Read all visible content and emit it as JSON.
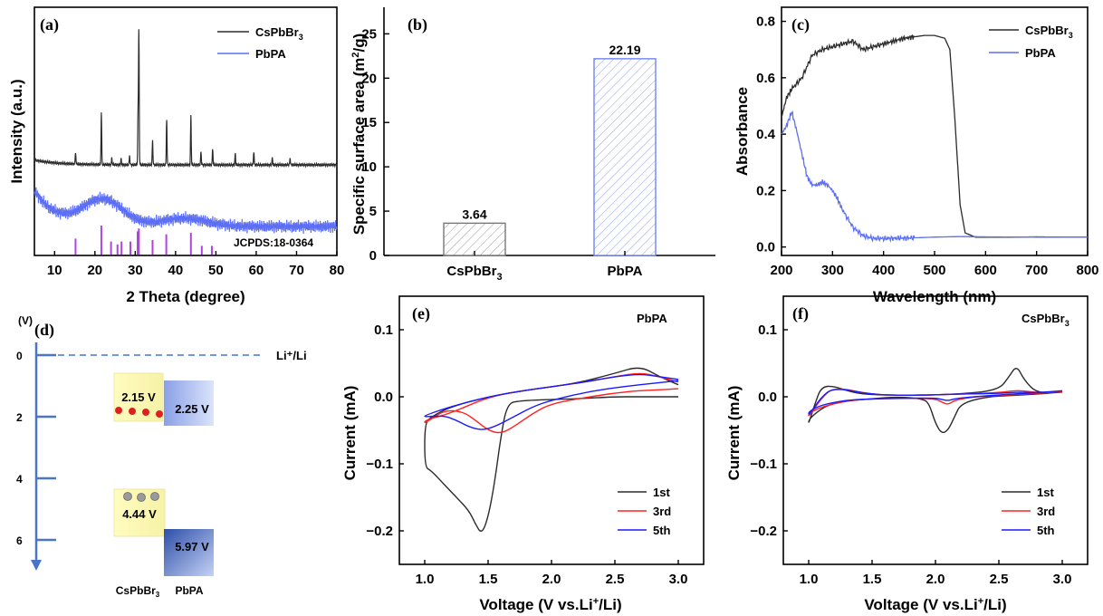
{
  "colors": {
    "black": "#2b2b2b",
    "blue": "#5b6ef5",
    "red": "#ff2020",
    "cv_blue": "#1a1aff",
    "purple": "#b044e0"
  },
  "chart_data": [
    {
      "panel": "(a)",
      "type": "line",
      "xlabel": "2 Theta (degree)",
      "ylabel": "Intensity (a.u.)",
      "xlim": [
        5,
        80
      ],
      "xticks": [
        10,
        20,
        30,
        40,
        50,
        60,
        70,
        80
      ],
      "legend": [
        "CsPbBr3",
        "PbPA"
      ],
      "reference_label": "JCPDS:18-0364",
      "cspbbr3_peaks": [
        {
          "x": 15.2,
          "h": 0.09
        },
        {
          "x": 21.6,
          "h": 0.38
        },
        {
          "x": 24.2,
          "h": 0.05
        },
        {
          "x": 26.5,
          "h": 0.04
        },
        {
          "x": 28.6,
          "h": 0.07
        },
        {
          "x": 30.7,
          "h": 0.38
        },
        {
          "x": 30.9,
          "h": 0.97
        },
        {
          "x": 34.3,
          "h": 0.18
        },
        {
          "x": 37.8,
          "h": 0.34
        },
        {
          "x": 43.8,
          "h": 0.36
        },
        {
          "x": 46.3,
          "h": 0.1
        },
        {
          "x": 49.2,
          "h": 0.12
        },
        {
          "x": 54.8,
          "h": 0.08
        },
        {
          "x": 59.4,
          "h": 0.1
        },
        {
          "x": 64.0,
          "h": 0.05
        },
        {
          "x": 68.4,
          "h": 0.05
        }
      ],
      "reference_lines": [
        {
          "x": 15.2,
          "h": 0.55
        },
        {
          "x": 21.6,
          "h": 1.0
        },
        {
          "x": 24.0,
          "h": 0.45
        },
        {
          "x": 25.6,
          "h": 0.35
        },
        {
          "x": 26.6,
          "h": 0.45
        },
        {
          "x": 28.8,
          "h": 0.45
        },
        {
          "x": 30.6,
          "h": 0.8
        },
        {
          "x": 30.9,
          "h": 0.9
        },
        {
          "x": 34.3,
          "h": 0.5
        },
        {
          "x": 37.7,
          "h": 0.7
        },
        {
          "x": 43.8,
          "h": 0.75
        },
        {
          "x": 46.5,
          "h": 0.3
        },
        {
          "x": 49.0,
          "h": 0.3
        }
      ]
    },
    {
      "panel": "(b)",
      "type": "bar",
      "categories": [
        "CsPbBr3",
        "PbPA"
      ],
      "values": [
        3.64,
        22.19
      ],
      "value_labels": [
        "3.64",
        "22.19"
      ],
      "ylabel": "Specific surface area (m2/g)",
      "ylim": [
        0,
        28
      ],
      "yticks": [
        0,
        5,
        10,
        15,
        20,
        25
      ]
    },
    {
      "panel": "(c)",
      "type": "line",
      "xlabel": "Wavelength (nm)",
      "ylabel": "Absorbance",
      "xlim": [
        200,
        800
      ],
      "ylim": [
        -0.03,
        0.85
      ],
      "xticks": [
        200,
        300,
        400,
        500,
        600,
        700,
        800
      ],
      "yticks": [
        0.0,
        0.2,
        0.4,
        0.6,
        0.8
      ],
      "legend": [
        "CsPbBr3",
        "PbPA"
      ],
      "series": [
        {
          "name": "CsPbBr3",
          "x": [
            200,
            210,
            220,
            240,
            260,
            280,
            300,
            320,
            340,
            360,
            380,
            400,
            440,
            480,
            500,
            520,
            530,
            540,
            550,
            560,
            580,
            600,
            650,
            700,
            750,
            800
          ],
          "y": [
            0.46,
            0.53,
            0.56,
            0.6,
            0.68,
            0.7,
            0.71,
            0.72,
            0.73,
            0.7,
            0.71,
            0.72,
            0.74,
            0.75,
            0.75,
            0.74,
            0.7,
            0.45,
            0.15,
            0.05,
            0.035,
            0.035,
            0.035,
            0.036,
            0.035,
            0.035
          ]
        },
        {
          "name": "PbPA",
          "x": [
            200,
            210,
            220,
            230,
            240,
            250,
            260,
            270,
            280,
            290,
            300,
            310,
            320,
            340,
            360,
            380,
            400,
            450,
            500,
            550,
            600,
            700,
            800
          ],
          "y": [
            0.4,
            0.43,
            0.48,
            0.41,
            0.33,
            0.25,
            0.22,
            0.22,
            0.23,
            0.22,
            0.2,
            0.17,
            0.13,
            0.07,
            0.04,
            0.03,
            0.03,
            0.032,
            0.035,
            0.037,
            0.036,
            0.035,
            0.035
          ]
        }
      ]
    },
    {
      "panel": "(d)",
      "type": "diagram",
      "axis_unit": "(V)",
      "yticks": [
        0,
        2,
        4,
        6
      ],
      "reference_label": "Li⁺/Li",
      "cspbbr3": {
        "upper": "2.15 V",
        "lower": "4.44 V"
      },
      "pbpa": {
        "upper": "2.25 V",
        "lower": "5.97 V"
      },
      "labels": [
        "CsPbBr₃",
        "PbPA"
      ]
    },
    {
      "panel": "(e)",
      "type": "line",
      "title": "PbPA",
      "xlabel": "Voltage (V vs.Li+/Li)",
      "ylabel": "Current (mA)",
      "xlim": [
        0.8,
        3.2
      ],
      "ylim": [
        -0.25,
        0.15
      ],
      "xticks": [
        1.0,
        1.5,
        2.0,
        2.5,
        3.0
      ],
      "yticks": [
        -0.2,
        -0.1,
        0.0,
        0.1
      ],
      "legend": [
        "1st",
        "3rd",
        "5th"
      ],
      "series": [
        {
          "name": "1st",
          "x": [
            3.0,
            2.8,
            2.65,
            2.5,
            2.2,
            2.0,
            1.75,
            1.65,
            1.6,
            1.55,
            1.5,
            1.45,
            1.4,
            1.35,
            1.25,
            1.15,
            1.05,
            1.0,
            1.0,
            1.05,
            1.2,
            1.5,
            1.8,
            2.2,
            2.5,
            2.7,
            2.85,
            3.0
          ],
          "y": [
            0.0,
            0.0,
            0.0,
            0.0,
            -0.003,
            -0.004,
            -0.006,
            -0.01,
            -0.06,
            -0.13,
            -0.18,
            -0.205,
            -0.19,
            -0.17,
            -0.15,
            -0.13,
            -0.11,
            -0.105,
            -0.04,
            -0.03,
            -0.015,
            0.0,
            0.01,
            0.02,
            0.035,
            0.046,
            0.03,
            0.018
          ]
        },
        {
          "name": "3rd",
          "x": [
            3.0,
            2.8,
            2.6,
            2.3,
            2.0,
            1.85,
            1.7,
            1.6,
            1.5,
            1.4,
            1.3,
            1.15,
            1.0,
            1.0,
            1.2,
            1.5,
            1.8,
            2.2,
            2.5,
            2.7,
            2.85,
            3.0
          ],
          "y": [
            0.012,
            0.01,
            0.008,
            0.0,
            -0.01,
            -0.025,
            -0.045,
            -0.055,
            -0.05,
            -0.035,
            -0.022,
            -0.02,
            -0.04,
            -0.035,
            -0.025,
            0.0,
            0.01,
            0.02,
            0.03,
            0.036,
            0.03,
            0.022
          ]
        },
        {
          "name": "5th",
          "x": [
            3.0,
            2.8,
            2.6,
            2.3,
            2.0,
            1.85,
            1.7,
            1.55,
            1.45,
            1.35,
            1.25,
            1.15,
            1.0,
            1.0,
            1.2,
            1.5,
            1.8,
            2.2,
            2.5,
            2.7,
            2.85,
            3.0
          ],
          "y": [
            0.024,
            0.02,
            0.016,
            0.008,
            -0.005,
            -0.015,
            -0.03,
            -0.045,
            -0.05,
            -0.045,
            -0.035,
            -0.028,
            -0.03,
            -0.028,
            -0.015,
            0.0,
            0.01,
            0.02,
            0.03,
            0.034,
            0.03,
            0.026
          ]
        }
      ]
    },
    {
      "panel": "(f)",
      "type": "line",
      "title": "CsPbBr3",
      "xlabel": "Voltage (V vs.Li+/Li)",
      "ylabel": "Current (mA)",
      "xlim": [
        0.8,
        3.2
      ],
      "ylim": [
        -0.25,
        0.15
      ],
      "xticks": [
        1.0,
        1.5,
        2.0,
        2.5,
        3.0
      ],
      "yticks": [
        -0.2,
        -0.1,
        0.0,
        0.1
      ],
      "legend": [
        "1st",
        "3rd",
        "5th"
      ],
      "series": [
        {
          "name": "1st",
          "x": [
            3.0,
            2.8,
            2.6,
            2.4,
            2.2,
            2.15,
            2.1,
            2.05,
            2.0,
            1.95,
            1.9,
            1.7,
            1.5,
            1.3,
            1.15,
            1.05,
            1.0,
            1.0,
            1.05,
            1.1,
            1.2,
            1.35,
            1.5,
            1.8,
            2.2,
            2.5,
            2.58,
            2.64,
            2.7,
            2.8,
            3.0
          ],
          "y": [
            0.007,
            0.004,
            0.002,
            0.0,
            -0.01,
            -0.03,
            -0.05,
            -0.055,
            -0.04,
            -0.01,
            -0.003,
            0.0,
            -0.003,
            -0.006,
            -0.012,
            -0.025,
            -0.035,
            -0.04,
            -0.01,
            0.015,
            0.016,
            0.006,
            0.003,
            0.002,
            0.004,
            0.01,
            0.03,
            0.047,
            0.025,
            0.005,
            0.007
          ]
        },
        {
          "name": "3rd",
          "x": [
            3.0,
            2.8,
            2.6,
            2.3,
            2.15,
            2.1,
            2.05,
            2.0,
            1.8,
            1.5,
            1.3,
            1.1,
            1.0,
            1.0,
            1.1,
            1.2,
            1.5,
            1.8,
            2.2,
            2.5,
            2.65,
            2.8,
            3.0
          ],
          "y": [
            0.008,
            0.005,
            0.003,
            0.0,
            -0.005,
            -0.012,
            -0.008,
            -0.003,
            -0.002,
            -0.003,
            -0.006,
            -0.015,
            -0.025,
            -0.03,
            -0.002,
            0.015,
            0.003,
            0.002,
            0.004,
            0.006,
            0.01,
            0.006,
            0.008
          ]
        },
        {
          "name": "5th",
          "x": [
            3.0,
            2.8,
            2.6,
            2.3,
            2.15,
            2.1,
            2.05,
            2.0,
            1.8,
            1.5,
            1.3,
            1.1,
            1.0,
            1.0,
            1.1,
            1.2,
            1.5,
            1.8,
            2.2,
            2.5,
            2.65,
            2.8,
            3.0
          ],
          "y": [
            0.009,
            0.006,
            0.004,
            0.0,
            -0.003,
            -0.006,
            -0.004,
            -0.002,
            -0.002,
            -0.003,
            -0.005,
            -0.012,
            -0.022,
            -0.028,
            0.0,
            0.014,
            0.003,
            0.002,
            0.004,
            0.005,
            0.007,
            0.006,
            0.009
          ]
        }
      ]
    }
  ]
}
